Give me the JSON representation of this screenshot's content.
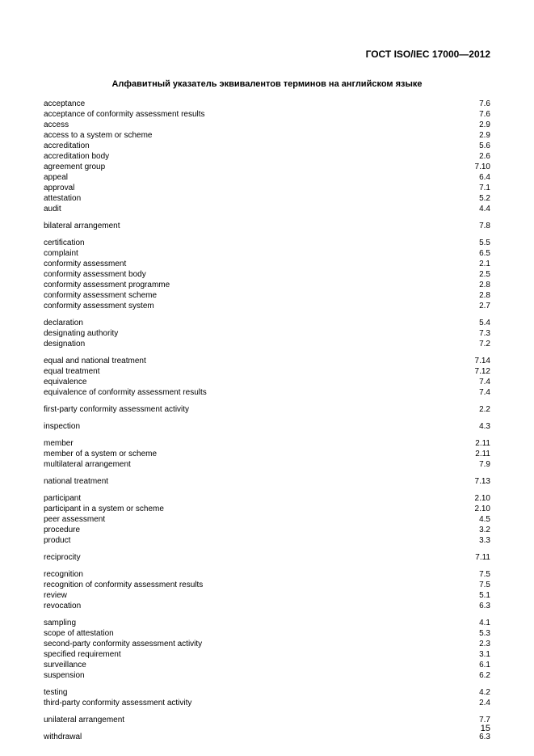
{
  "doc_id": "ГОСТ ISO/IEC 17000—2012",
  "title": "Алфавитный указатель эквивалентов терминов на английском языке",
  "page_number": "15",
  "groups": [
    [
      {
        "term": "acceptance",
        "num": "7.6"
      },
      {
        "term": "acceptance of conformity assessment results",
        "num": "7.6"
      },
      {
        "term": "access",
        "num": "2.9"
      },
      {
        "term": "access to a system or scheme",
        "num": "2.9"
      },
      {
        "term": "accreditation",
        "num": "5.6"
      },
      {
        "term": "accreditation body",
        "num": "2.6"
      },
      {
        "term": "agreement group",
        "num": "7.10"
      },
      {
        "term": "appeal",
        "num": "6.4"
      },
      {
        "term": "approval",
        "num": "7.1"
      },
      {
        "term": "attestation",
        "num": "5.2"
      },
      {
        "term": "audit",
        "num": "4.4"
      }
    ],
    [
      {
        "term": "bilateral arrangement",
        "num": "7.8"
      }
    ],
    [
      {
        "term": "certification",
        "num": "5.5"
      },
      {
        "term": "complaint",
        "num": "6.5"
      },
      {
        "term": "conformity assessment",
        "num": "2.1"
      },
      {
        "term": "conformity assessment body",
        "num": "2.5"
      },
      {
        "term": "conformity assessment programme",
        "num": "2.8"
      },
      {
        "term": "conformity assessment scheme",
        "num": "2.8"
      },
      {
        "term": "conformity assessment system",
        "num": "2.7"
      }
    ],
    [
      {
        "term": "declaration",
        "num": "5.4"
      },
      {
        "term": "designating authority",
        "num": "7.3"
      },
      {
        "term": "designation",
        "num": "7.2"
      }
    ],
    [
      {
        "term": "equal and national treatment",
        "num": "7.14"
      },
      {
        "term": "equal treatment",
        "num": "7.12"
      },
      {
        "term": "equivalence",
        "num": "7.4"
      },
      {
        "term": "equivalence of conformity assessment results",
        "num": "7.4"
      }
    ],
    [
      {
        "term": "first-party conformity assessment activity",
        "num": "2.2"
      }
    ],
    [
      {
        "term": "inspection",
        "num": "4.3"
      }
    ],
    [
      {
        "term": "member",
        "num": "2.11"
      },
      {
        "term": "member of a system or scheme",
        "num": "2.11"
      },
      {
        "term": "multilateral arrangement",
        "num": "7.9"
      }
    ],
    [
      {
        "term": "national treatment",
        "num": "7.13"
      }
    ],
    [
      {
        "term": "participant",
        "num": "2.10"
      },
      {
        "term": "participant in a system or scheme",
        "num": "2.10"
      },
      {
        "term": "peer assessment",
        "num": "4.5"
      },
      {
        "term": "procedure",
        "num": "3.2"
      },
      {
        "term": "product",
        "num": "3.3"
      }
    ],
    [
      {
        "term": "reciprocity",
        "num": "7.11"
      }
    ],
    [
      {
        "term": "recognition",
        "num": "7.5"
      },
      {
        "term": "recognition of conformity assessment results",
        "num": "7.5"
      },
      {
        "term": "review",
        "num": "5.1"
      },
      {
        "term": "revocation",
        "num": "6.3"
      }
    ],
    [
      {
        "term": "sampling",
        "num": "4.1"
      },
      {
        "term": "scope of attestation",
        "num": "5.3"
      },
      {
        "term": "second-party conformity assessment activity",
        "num": "2.3"
      },
      {
        "term": "specified requirement",
        "num": "3.1"
      },
      {
        "term": "surveillance",
        "num": "6.1"
      },
      {
        "term": "suspension",
        "num": "6.2"
      }
    ],
    [
      {
        "term": "testing",
        "num": "4.2"
      },
      {
        "term": "third-party conformity assessment activity",
        "num": "2.4"
      }
    ],
    [
      {
        "term": "unilateral arrangement",
        "num": "7.7"
      }
    ],
    [
      {
        "term": "withdrawal",
        "num": "6.3"
      }
    ]
  ]
}
